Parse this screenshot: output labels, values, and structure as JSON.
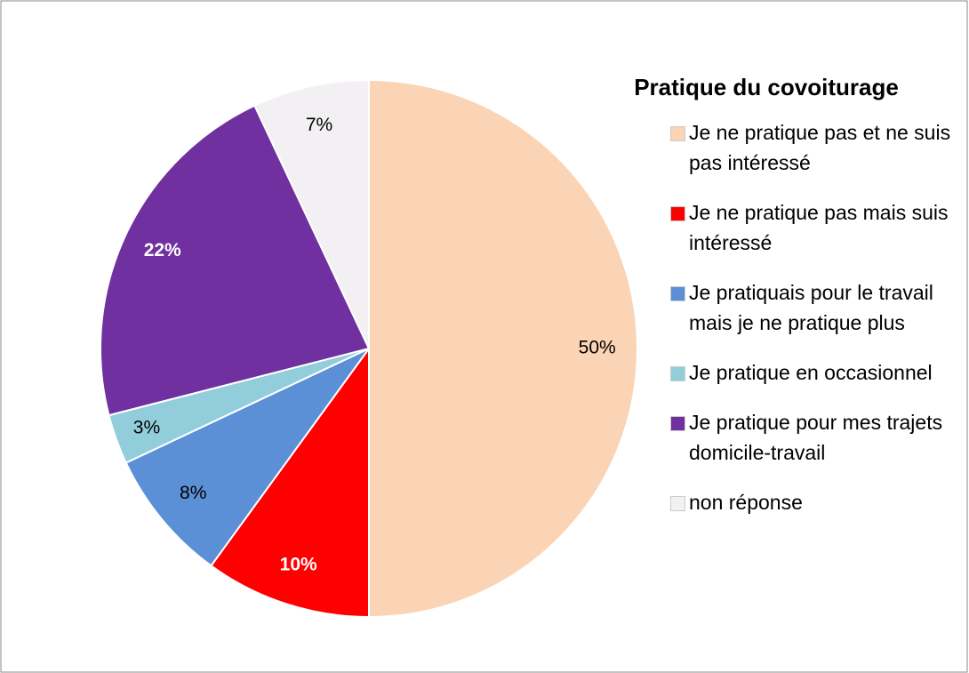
{
  "chart_data": {
    "type": "pie",
    "title": "Pratique du covoiturage",
    "categories": [
      "Je ne pratique pas et ne suis pas intéressé",
      "Je ne pratique pas mais suis intéressé",
      "Je pratiquais pour le travail mais je ne pratique plus",
      "Je pratique en occasionnel",
      "Je pratique pour mes trajets domicile-travail",
      "non réponse"
    ],
    "values": [
      50,
      10,
      8,
      3,
      22,
      7
    ],
    "value_labels": [
      "50%",
      "10%",
      "8%",
      "3%",
      "22%",
      "7%"
    ],
    "colors": [
      "#fad4b4",
      "#ff0000",
      "#5b8fd6",
      "#92cddc",
      "#7030a0",
      "#f2f0f2"
    ],
    "legend": "right"
  }
}
